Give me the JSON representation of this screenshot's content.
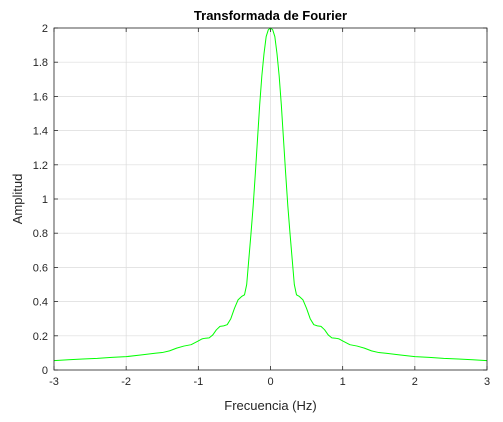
{
  "chart_data": {
    "type": "line",
    "title": "Transformada de Fourier",
    "xlabel": "Frecuencia (Hz)",
    "ylabel": "Amplitud",
    "xlim": [
      -3,
      3
    ],
    "ylim": [
      0,
      2
    ],
    "xticks": [
      -3,
      -2,
      -1,
      0,
      1,
      2,
      3
    ],
    "xtick_labels": [
      "-3",
      "-2",
      "-1",
      "0",
      "1",
      "2",
      "3"
    ],
    "yticks": [
      0,
      0.2,
      0.4,
      0.6,
      0.8,
      1,
      1.2,
      1.4,
      1.6,
      1.8,
      2
    ],
    "ytick_labels": [
      "0",
      "0.2",
      "0.4",
      "0.6",
      "0.8",
      "1",
      "1.2",
      "1.4",
      "1.6",
      "1.8",
      "2"
    ],
    "grid": true,
    "series": [
      {
        "color": "#00ff00",
        "x": [
          -3.0,
          -2.8,
          -2.6,
          -2.4,
          -2.2,
          -2.0,
          -1.8,
          -1.6,
          -1.5,
          -1.4,
          -1.3,
          -1.2,
          -1.1,
          -1.0,
          -0.95,
          -0.9,
          -0.85,
          -0.8,
          -0.75,
          -0.7,
          -0.65,
          -0.6,
          -0.55,
          -0.5,
          -0.45,
          -0.4,
          -0.36,
          -0.33,
          -0.3,
          -0.27,
          -0.24,
          -0.21,
          -0.18,
          -0.15,
          -0.12,
          -0.09,
          -0.06,
          -0.03,
          0.0,
          0.03,
          0.06,
          0.09,
          0.12,
          0.15,
          0.18,
          0.21,
          0.24,
          0.27,
          0.3,
          0.33,
          0.36,
          0.4,
          0.45,
          0.5,
          0.55,
          0.6,
          0.65,
          0.7,
          0.75,
          0.8,
          0.85,
          0.9,
          0.95,
          1.0,
          1.1,
          1.2,
          1.3,
          1.4,
          1.5,
          1.6,
          1.8,
          2.0,
          2.2,
          2.4,
          2.6,
          2.8,
          3.0
        ],
        "y": [
          0.055,
          0.06,
          0.064,
          0.068,
          0.074,
          0.078,
          0.088,
          0.098,
          0.102,
          0.112,
          0.128,
          0.14,
          0.148,
          0.17,
          0.182,
          0.186,
          0.188,
          0.205,
          0.235,
          0.255,
          0.258,
          0.265,
          0.3,
          0.36,
          0.41,
          0.43,
          0.44,
          0.5,
          0.65,
          0.8,
          0.96,
          1.15,
          1.35,
          1.55,
          1.72,
          1.85,
          1.95,
          1.99,
          2.0,
          1.99,
          1.95,
          1.85,
          1.72,
          1.55,
          1.35,
          1.15,
          0.96,
          0.8,
          0.65,
          0.5,
          0.44,
          0.43,
          0.41,
          0.36,
          0.3,
          0.265,
          0.258,
          0.255,
          0.235,
          0.205,
          0.188,
          0.186,
          0.182,
          0.17,
          0.148,
          0.14,
          0.128,
          0.112,
          0.102,
          0.098,
          0.088,
          0.078,
          0.074,
          0.068,
          0.064,
          0.06,
          0.055
        ]
      }
    ]
  }
}
